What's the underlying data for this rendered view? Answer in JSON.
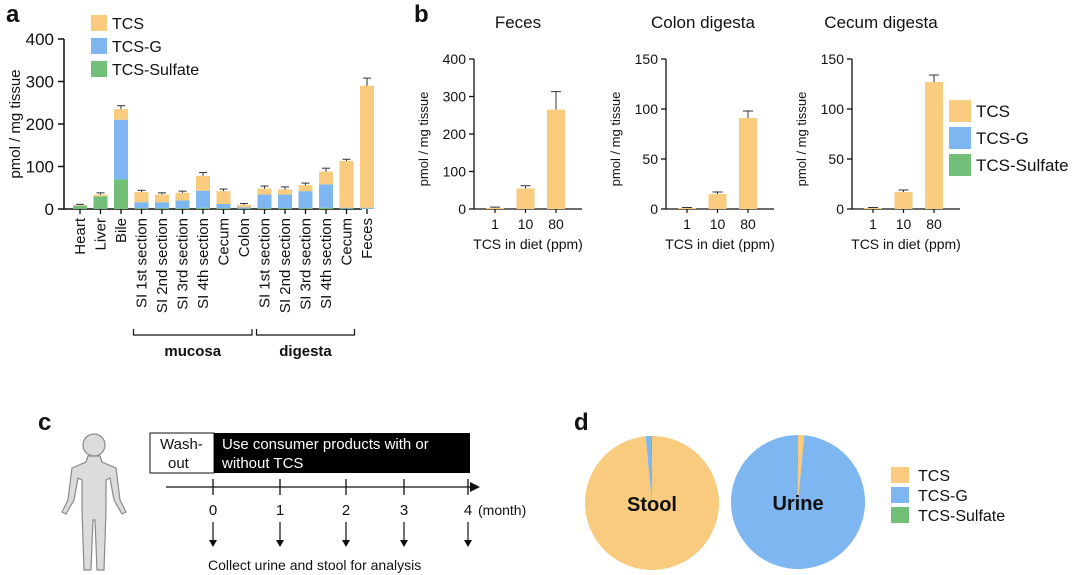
{
  "colors": {
    "TCS": "#F8CB7E",
    "TCS-G": "#7EB6F2",
    "TCS-Sulfate": "#72C077",
    "axis": "#111111"
  },
  "panels": {
    "a": "a",
    "b": "b",
    "c": "c",
    "d": "d"
  },
  "chart_data": [
    {
      "type": "bar",
      "ylabel": "pmol / mg tissue",
      "ylim": [
        0,
        400
      ],
      "yticks": [
        0,
        100,
        200,
        300,
        400
      ],
      "stacked": true,
      "legend": [
        "TCS",
        "TCS-G",
        "TCS-Sulfate"
      ],
      "categories": [
        "Heart",
        "Liver",
        "Bile",
        "SI 1st section",
        "SI 2nd section",
        "SI 3rd section",
        "SI 4th section",
        "Cecum",
        "Colon",
        "SI 1st section",
        "SI 2nd section",
        "SI 3rd section",
        "SI 4th section",
        "Cecum",
        "Feces"
      ],
      "series": [
        {
          "name": "TCS-Sulfate",
          "values": [
            8,
            30,
            70,
            2,
            2,
            2,
            3,
            2,
            1,
            2,
            2,
            2,
            3,
            1,
            1
          ]
        },
        {
          "name": "TCS-G",
          "values": [
            0,
            0,
            140,
            14,
            14,
            18,
            40,
            10,
            3,
            32,
            32,
            40,
            55,
            2,
            2
          ]
        },
        {
          "name": "TCS",
          "values": [
            1,
            4,
            25,
            24,
            18,
            18,
            35,
            30,
            6,
            14,
            12,
            14,
            30,
            110,
            287
          ]
        }
      ],
      "errors": [
        2,
        4,
        8,
        4,
        4,
        4,
        8,
        5,
        3,
        6,
        6,
        5,
        8,
        4,
        18
      ],
      "groups": [
        {
          "label": "mucosa",
          "from": 3,
          "to": 8
        },
        {
          "label": "digesta",
          "from": 9,
          "to": 13
        }
      ]
    },
    {
      "type": "bar",
      "title": "Feces",
      "xlabel": "TCS in diet (ppm)",
      "ylabel": "pmol / mg tissue",
      "categories": [
        "1",
        "10",
        "80"
      ],
      "ylim": [
        0,
        400
      ],
      "yticks": [
        0,
        100,
        200,
        300,
        400
      ],
      "values": [
        3,
        55,
        265
      ],
      "errors": [
        2,
        7,
        48
      ]
    },
    {
      "type": "bar",
      "title": "Colon digesta",
      "xlabel": "TCS in diet (ppm)",
      "ylabel": "pmol / mg tissue",
      "categories": [
        "1",
        "10",
        "80"
      ],
      "ylim": [
        0,
        150
      ],
      "yticks": [
        0,
        50,
        100,
        150
      ],
      "values": [
        1,
        15,
        91
      ],
      "errors": [
        0.5,
        2,
        7
      ]
    },
    {
      "type": "bar",
      "title": "Cecum digesta",
      "xlabel": "TCS in diet (ppm)",
      "ylabel": "pmol / mg tissue",
      "categories": [
        "1",
        "10",
        "80"
      ],
      "ylim": [
        0,
        150
      ],
      "yticks": [
        0,
        50,
        100,
        150
      ],
      "values": [
        1,
        17,
        127
      ],
      "errors": [
        0.5,
        2,
        7
      ]
    },
    {
      "type": "pie",
      "label": "Stool",
      "slices": [
        {
          "name": "TCS",
          "value": 98.5
        },
        {
          "name": "TCS-G",
          "value": 1.2
        },
        {
          "name": "TCS-Sulfate",
          "value": 0.3
        }
      ]
    },
    {
      "type": "pie",
      "label": "Urine",
      "slices": [
        {
          "name": "TCS",
          "value": 1.5
        },
        {
          "name": "TCS-G",
          "value": 98.3
        },
        {
          "name": "TCS-Sulfate",
          "value": 0.2
        }
      ]
    }
  ],
  "legends": {
    "a": [
      "TCS",
      "TCS-G",
      "TCS-Sulfate"
    ],
    "b": [
      "TCS",
      "TCS-G",
      "TCS-Sulfate"
    ],
    "d": [
      "TCS",
      "TCS-G",
      "TCS-Sulfate"
    ]
  },
  "timeline": {
    "washout": "Wash-\nout",
    "phase": "Use consumer products with or\nwithout TCS",
    "ticks": [
      "0",
      "1",
      "2",
      "3",
      "4"
    ],
    "unit": "(month)",
    "collect": "Collect urine and stool for analysis"
  }
}
